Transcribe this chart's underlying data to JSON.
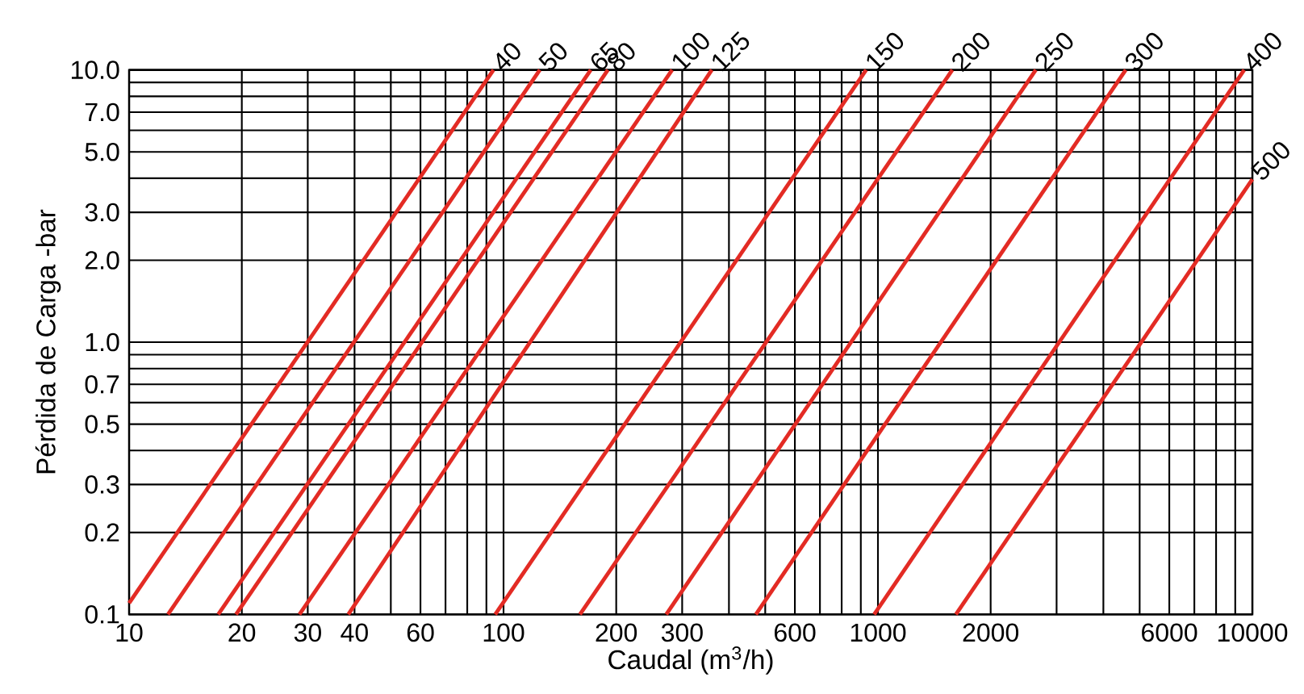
{
  "chart_data": {
    "type": "line",
    "xlabel": "Caudal (m$^{3}$/h)",
    "ylabel": "Pérdida de Carga -bar",
    "log": "xy",
    "grid": true,
    "legend": false,
    "marker": "none",
    "line_style": "solid",
    "xlim": [
      10,
      10000
    ],
    "ylim": [
      0.1,
      10
    ],
    "xticks": [
      10,
      20,
      30,
      40,
      {
        "value": 50,
        "label": null
      },
      60,
      {
        "value": 70,
        "label": null
      },
      {
        "value": 80,
        "label": null
      },
      {
        "value": 90,
        "label": null
      },
      100,
      200,
      300,
      {
        "value": 400,
        "label": null
      },
      {
        "value": 500,
        "label": null
      },
      600,
      {
        "value": 700,
        "label": null
      },
      {
        "value": 800,
        "label": null
      },
      {
        "value": 900,
        "label": null
      },
      1000,
      2000,
      {
        "value": 3000,
        "label": null
      },
      {
        "value": 4000,
        "label": null
      },
      {
        "value": 5000,
        "label": null
      },
      6000,
      {
        "value": 7000,
        "label": null
      },
      {
        "value": 8000,
        "label": null
      },
      {
        "value": 9000,
        "label": null
      },
      10000
    ],
    "yticks": [
      0.1,
      0.2,
      0.3,
      {
        "value": 0.4,
        "label": null
      },
      0.5,
      {
        "value": 0.6,
        "label": null
      },
      0.7,
      {
        "value": 0.8,
        "label": null
      },
      {
        "value": 0.9,
        "label": null
      },
      {
        "value": 1,
        "label": "1.0"
      },
      {
        "value": 2,
        "label": "2.0"
      },
      {
        "value": 3,
        "label": "3.0"
      },
      {
        "value": 4,
        "label": null
      },
      {
        "value": 5,
        "label": "5.0"
      },
      {
        "value": 6,
        "label": null
      },
      {
        "value": 7,
        "label": "7.0"
      },
      {
        "value": 8,
        "label": null
      },
      {
        "value": 9,
        "label": null
      },
      {
        "value": 10,
        "label": "10.0"
      }
    ],
    "series": [
      {
        "name": "40",
        "color": "#e32b24",
        "x": [
          10,
          94
        ],
        "values": [
          0.11,
          10
        ]
      },
      {
        "name": "50",
        "color": "#e32b24",
        "x": [
          12.7,
          125
        ],
        "values": [
          0.1,
          10
        ]
      },
      {
        "name": "65",
        "color": "#e32b24",
        "x": [
          17.3,
          171
        ],
        "values": [
          0.1,
          10
        ]
      },
      {
        "name": "80",
        "color": "#e32b24",
        "x": [
          19.3,
          190
        ],
        "values": [
          0.1,
          10
        ]
      },
      {
        "name": "100",
        "color": "#e32b24",
        "x": [
          28.5,
          282
        ],
        "values": [
          0.1,
          10
        ]
      },
      {
        "name": "125",
        "color": "#e32b24",
        "x": [
          38.5,
          360
        ],
        "values": [
          0.1,
          10
        ]
      },
      {
        "name": "150",
        "color": "#e32b24",
        "x": [
          95,
          930
        ],
        "values": [
          0.1,
          10
        ]
      },
      {
        "name": "200",
        "color": "#e32b24",
        "x": [
          160,
          1580
        ],
        "values": [
          0.1,
          10
        ]
      },
      {
        "name": "250",
        "color": "#e32b24",
        "x": [
          272,
          2640
        ],
        "values": [
          0.1,
          10
        ]
      },
      {
        "name": "300",
        "color": "#e32b24",
        "x": [
          472,
          4590
        ],
        "values": [
          0.1,
          10
        ]
      },
      {
        "name": "400",
        "color": "#e32b24",
        "x": [
          977,
          9510
        ],
        "values": [
          0.1,
          10
        ]
      },
      {
        "name": "500",
        "color": "#e32b24",
        "x": [
          1615,
          10000
        ],
        "values": [
          0.1,
          3.97
        ]
      }
    ]
  }
}
